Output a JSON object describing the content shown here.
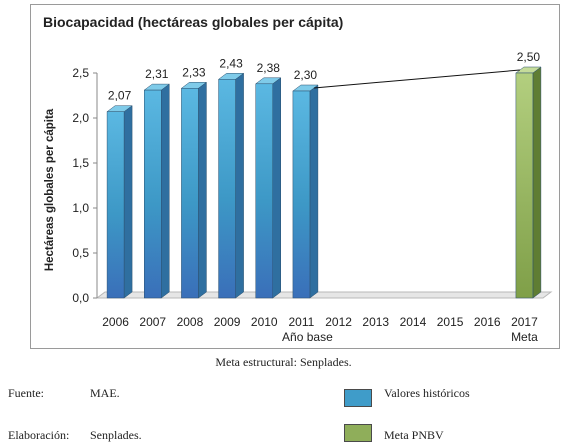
{
  "chart_data": {
    "type": "bar",
    "title": "Biocapacidad (hectáreas globales per cápita)",
    "ylabel": "Hectáreas globales per cápita",
    "ylim": [
      0,
      2.5
    ],
    "y_ticks": [
      "0,0",
      "0,5",
      "1,0",
      "1,5",
      "2,0",
      "2,5"
    ],
    "categories": [
      "2006",
      "2007",
      "2008",
      "2009",
      "2010",
      "2011",
      "2012",
      "2013",
      "2014",
      "2015",
      "2016",
      "2017"
    ],
    "category_sublabels": {
      "2011": "Año base",
      "2017": "Meta"
    },
    "series": [
      {
        "name": "Valores históricos",
        "color": "#3f9cc9",
        "values": [
          2.07,
          2.31,
          2.33,
          2.43,
          2.38,
          2.3,
          null,
          null,
          null,
          null,
          null,
          null
        ],
        "labels": [
          "2,07",
          "2,31",
          "2,33",
          "2,43",
          "2,38",
          "2,30"
        ]
      },
      {
        "name": "Meta PNBV",
        "color": "#8fae5a",
        "values": [
          null,
          null,
          null,
          null,
          null,
          null,
          null,
          null,
          null,
          null,
          null,
          2.5
        ],
        "labels": [
          "2,50"
        ]
      }
    ],
    "trend_line": {
      "from": "2011",
      "to": "2017"
    },
    "grid": false,
    "legend_position": "bottom-right"
  },
  "caption": "Meta estructural: Senplades.",
  "notes": [
    {
      "label": "Fuente:",
      "value": "MAE."
    },
    {
      "label": "Elaboración:",
      "value": "Senplades."
    }
  ],
  "legend": [
    {
      "label": "Valores históricos",
      "color": "#3f9cc9"
    },
    {
      "label": "Meta PNBV",
      "color": "#8fae5a"
    }
  ]
}
